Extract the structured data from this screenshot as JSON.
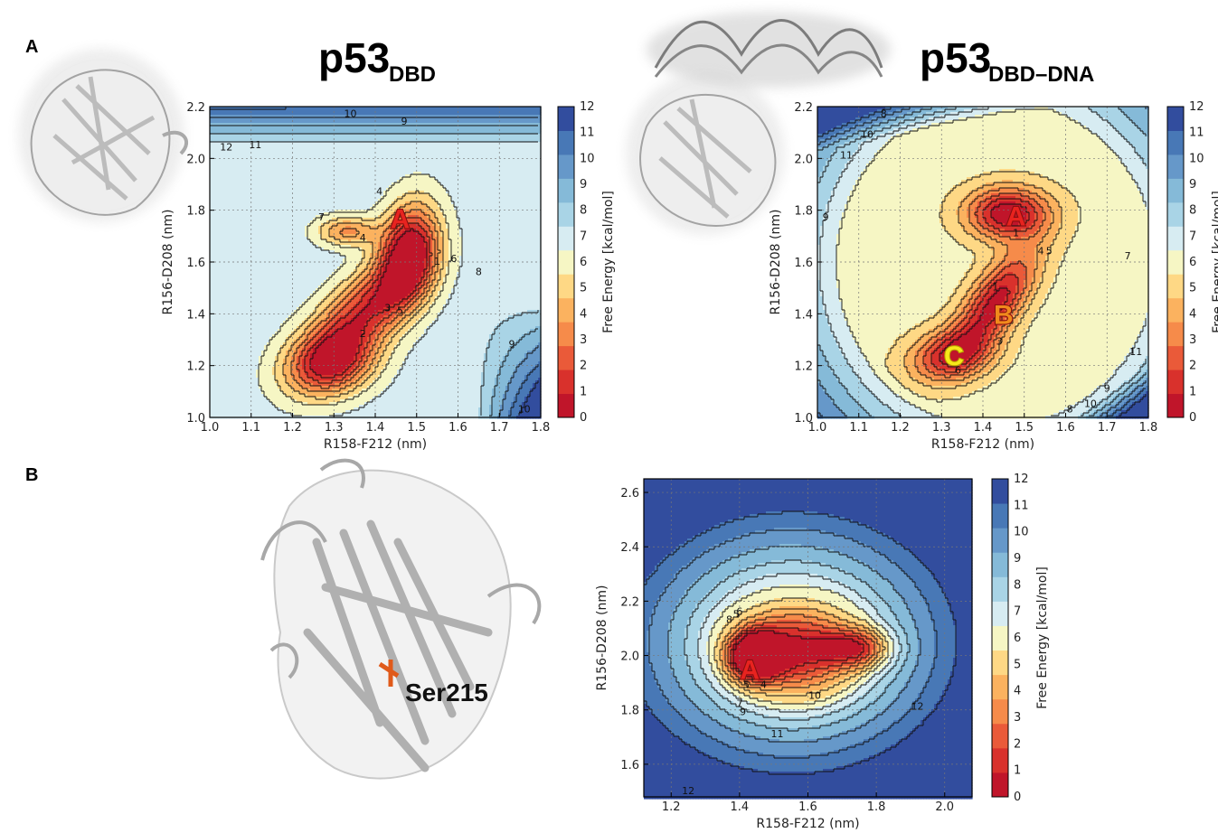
{
  "panel_labels": [
    "A",
    "B"
  ],
  "structure_label": "Ser215",
  "colorbar": {
    "label": "Free Energy [kcal/mol]",
    "ticks": [
      "0",
      "1",
      "2",
      "3",
      "4",
      "5",
      "6",
      "7",
      "8",
      "9",
      "10",
      "11",
      "12"
    ],
    "colors": [
      "#c0152a",
      "#d9312c",
      "#ea5a39",
      "#f68b4a",
      "#fbb25f",
      "#fed885",
      "#f6f6c4",
      "#d7ecf2",
      "#a9d4e6",
      "#85bad8",
      "#6698c9",
      "#4878b6",
      "#324d9e"
    ]
  },
  "chart_data": [
    {
      "type": "heatmap",
      "title_main": "p53",
      "title_sub": "DBD",
      "xlabel": "R158-F212 (nm)",
      "ylabel": "R156-D208 (nm)",
      "xlim": [
        1.0,
        1.8
      ],
      "ylim": [
        1.0,
        2.2
      ],
      "xticks": [
        "1.0",
        "1.1",
        "1.2",
        "1.3",
        "1.4",
        "1.5",
        "1.6",
        "1.7",
        "1.8"
      ],
      "yticks": [
        "1.0",
        "1.2",
        "1.4",
        "1.6",
        "1.8",
        "2.0",
        "2.2"
      ],
      "contour_labels": [
        {
          "text": "10",
          "x": 1.34,
          "y": 2.16
        },
        {
          "text": "9",
          "x": 1.47,
          "y": 2.13
        },
        {
          "text": "12",
          "x": 1.04,
          "y": 2.03
        },
        {
          "text": "11",
          "x": 1.11,
          "y": 2.04
        },
        {
          "text": "7",
          "x": 1.27,
          "y": 1.76
        },
        {
          "text": "4",
          "x": 1.37,
          "y": 1.68
        },
        {
          "text": "4",
          "x": 1.41,
          "y": 1.86
        },
        {
          "text": "1",
          "x": 1.55,
          "y": 1.59
        },
        {
          "text": "6",
          "x": 1.59,
          "y": 1.6
        },
        {
          "text": "8",
          "x": 1.65,
          "y": 1.55
        },
        {
          "text": "3",
          "x": 1.43,
          "y": 1.41
        },
        {
          "text": "5",
          "x": 1.46,
          "y": 1.4
        },
        {
          "text": "2",
          "x": 1.37,
          "y": 1.31
        },
        {
          "text": "9",
          "x": 1.73,
          "y": 1.27
        },
        {
          "text": "10",
          "x": 1.76,
          "y": 1.02
        }
      ],
      "states": [
        {
          "label": "A",
          "x": 1.46,
          "y": 1.77,
          "color": "#e8231f"
        }
      ]
    },
    {
      "type": "heatmap",
      "title_main": "p53",
      "title_sub": "DBD–DNA",
      "xlabel": "R158-F212 (nm)",
      "ylabel": "R156-D208 (nm)",
      "xlim": [
        1.0,
        1.8
      ],
      "ylim": [
        1.0,
        2.2
      ],
      "xticks": [
        "1.0",
        "1.1",
        "1.2",
        "1.3",
        "1.4",
        "1.5",
        "1.6",
        "1.7",
        "1.8"
      ],
      "yticks": [
        "1.0",
        "1.2",
        "1.4",
        "1.6",
        "1.8",
        "2.0",
        "2.2"
      ],
      "contour_labels": [
        {
          "text": "8",
          "x": 1.16,
          "y": 2.16
        },
        {
          "text": "11",
          "x": 1.07,
          "y": 2.0
        },
        {
          "text": "10",
          "x": 1.12,
          "y": 2.08
        },
        {
          "text": "9",
          "x": 1.02,
          "y": 1.76
        },
        {
          "text": "1",
          "x": 1.48,
          "y": 1.7
        },
        {
          "text": "4",
          "x": 1.54,
          "y": 1.63
        },
        {
          "text": "5",
          "x": 1.56,
          "y": 1.63
        },
        {
          "text": "7",
          "x": 1.75,
          "y": 1.61
        },
        {
          "text": "1",
          "x": 1.43,
          "y": 1.49
        },
        {
          "text": "3",
          "x": 1.44,
          "y": 1.28
        },
        {
          "text": "6",
          "x": 1.34,
          "y": 1.17
        },
        {
          "text": "8",
          "x": 1.61,
          "y": 1.02
        },
        {
          "text": "10",
          "x": 1.66,
          "y": 1.04
        },
        {
          "text": "9",
          "x": 1.7,
          "y": 1.1
        },
        {
          "text": "11",
          "x": 1.77,
          "y": 1.24
        }
      ],
      "states": [
        {
          "label": "A",
          "x": 1.48,
          "y": 1.78,
          "color": "#e8231f"
        },
        {
          "label": "B",
          "x": 1.45,
          "y": 1.4,
          "color": "#f08a1c"
        },
        {
          "label": "C",
          "x": 1.33,
          "y": 1.24,
          "color": "#f6e81a"
        }
      ]
    },
    {
      "type": "heatmap",
      "title_main": "",
      "title_sub": "",
      "xlabel": "R158-F212 (nm)",
      "ylabel": "R156-D208 (nm)",
      "xlim": [
        1.12,
        2.08
      ],
      "ylim": [
        1.48,
        2.65
      ],
      "xticks": [
        "1.2",
        "1.4",
        "1.6",
        "1.8",
        "2.0"
      ],
      "yticks": [
        "1.6",
        "1.8",
        "2.0",
        "2.2",
        "2.4",
        "2.6"
      ],
      "contour_labels": [
        {
          "text": "8",
          "x": 1.37,
          "y": 2.12
        },
        {
          "text": "5",
          "x": 1.39,
          "y": 2.14
        },
        {
          "text": "6",
          "x": 1.4,
          "y": 2.15
        },
        {
          "text": "5",
          "x": 1.42,
          "y": 1.88
        },
        {
          "text": "4",
          "x": 1.47,
          "y": 1.88
        },
        {
          "text": "7",
          "x": 1.4,
          "y": 1.81
        },
        {
          "text": "9",
          "x": 1.41,
          "y": 1.78
        },
        {
          "text": "11",
          "x": 1.51,
          "y": 1.7
        },
        {
          "text": "10",
          "x": 1.62,
          "y": 1.84
        },
        {
          "text": "12",
          "x": 1.92,
          "y": 1.8
        },
        {
          "text": "12",
          "x": 1.25,
          "y": 1.49
        }
      ],
      "states": [
        {
          "label": "A",
          "x": 1.43,
          "y": 1.95,
          "color": "#e8231f"
        }
      ]
    }
  ]
}
